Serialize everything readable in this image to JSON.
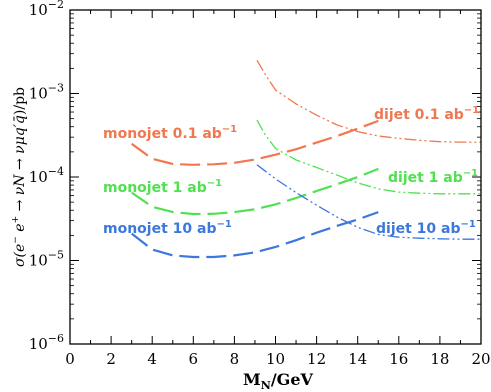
{
  "chart_data": {
    "type": "line",
    "xlabel": "M_N/GeV",
    "ylabel": "σ(e⁻e⁺ → νN → νμq′q̄)/pb",
    "xlim": [
      0,
      20
    ],
    "ylim": [
      1e-06,
      0.01
    ],
    "yscale": "log",
    "grid": false,
    "x_ticks": [
      "0",
      "2",
      "4",
      "6",
      "8",
      "10",
      "12",
      "14",
      "16",
      "18",
      "20"
    ],
    "y_ticks": [
      {
        "base": "10",
        "exp": "-6"
      },
      {
        "base": "10",
        "exp": "-5"
      },
      {
        "base": "10",
        "exp": "-4"
      },
      {
        "base": "10",
        "exp": "-3"
      },
      {
        "base": "10",
        "exp": "-2"
      }
    ],
    "series": [
      {
        "label": "monojet 0.1 ab⁻¹",
        "label_main": "monojet 0.1 ab",
        "label_sup": "−1",
        "color": "#f07850",
        "style": "dashed",
        "x": [
          3,
          4,
          5,
          6,
          7,
          8,
          9,
          10,
          11,
          12,
          13,
          14,
          15
        ],
        "y": [
          0.00025,
          0.000165,
          0.000143,
          0.00014,
          0.000142,
          0.000148,
          0.000162,
          0.000185,
          0.000215,
          0.000258,
          0.00031,
          0.00038,
          0.00047
        ]
      },
      {
        "label": "monojet 1 ab⁻¹",
        "label_main": "monojet 1 ab",
        "label_sup": "−1",
        "color": "#50e050",
        "style": "dashed",
        "x": [
          3,
          4,
          5,
          6,
          7,
          8,
          9,
          10,
          11,
          12,
          13,
          14,
          15
        ],
        "y": [
          6.5e-05,
          4.4e-05,
          3.8e-05,
          3.6e-05,
          3.62e-05,
          3.8e-05,
          4.1e-05,
          4.7e-05,
          5.6e-05,
          6.8e-05,
          8.2e-05,
          0.0001,
          0.000125
        ]
      },
      {
        "label": "monojet 10 ab⁻¹",
        "label_main": "monojet 10 ab",
        "label_sup": "−1",
        "color": "#3c78dc",
        "style": "dashed",
        "x": [
          3,
          4,
          5,
          6,
          7,
          8,
          9,
          10,
          11,
          12,
          13,
          14,
          15
        ],
        "y": [
          2.1e-05,
          1.35e-05,
          1.15e-05,
          1.1e-05,
          1.1e-05,
          1.15e-05,
          1.25e-05,
          1.45e-05,
          1.75e-05,
          2.15e-05,
          2.6e-05,
          3.1e-05,
          3.8e-05
        ]
      },
      {
        "label": "dijet 0.1 ab⁻¹",
        "label_main": "dijet 0.1 ab",
        "label_sup": "−1",
        "color": "#f07850",
        "style": "dash-dot-dot",
        "x": [
          9.1,
          9.5,
          10,
          11,
          12,
          13,
          14,
          15,
          16,
          17,
          18,
          19,
          20
        ],
        "y": [
          0.0025,
          0.0017,
          0.0011,
          0.00075,
          0.00055,
          0.00042,
          0.00035,
          0.00031,
          0.00029,
          0.000275,
          0.000265,
          0.000262,
          0.00026
        ]
      },
      {
        "label": "dijet 1 ab⁻¹",
        "label_main": "dijet 1 ab",
        "label_sup": "−1",
        "color": "#50e050",
        "style": "dash-dot-dot",
        "x": [
          9.1,
          9.5,
          10,
          11,
          12,
          13,
          14,
          15,
          16,
          17,
          18,
          19,
          20
        ],
        "y": [
          0.00048,
          0.00032,
          0.00022,
          0.00016,
          0.00013,
          0.000105,
          8.5e-05,
          7.2e-05,
          6.6e-05,
          6.4e-05,
          6.3e-05,
          6.3e-05,
          6.3e-05
        ]
      },
      {
        "label": "dijet 10 ab⁻¹",
        "label_main": "dijet 10 ab",
        "label_sup": "−1",
        "color": "#3c78dc",
        "style": "dash-dot-dot",
        "x": [
          9.1,
          10,
          11,
          12,
          13,
          14,
          15,
          16,
          17,
          18,
          19,
          20
        ],
        "y": [
          0.00014,
          9.5e-05,
          6.5e-05,
          4.6e-05,
          3.3e-05,
          2.5e-05,
          2.05e-05,
          1.9e-05,
          1.85e-05,
          1.82e-05,
          1.8e-05,
          1.8e-05
        ]
      }
    ]
  }
}
